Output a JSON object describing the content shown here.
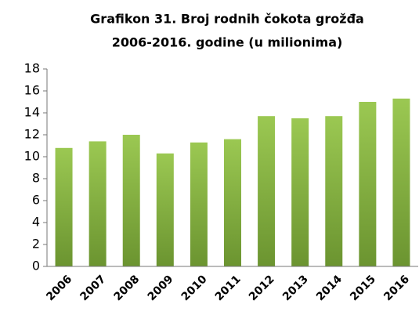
{
  "chart_data": {
    "type": "bar",
    "title": [
      "Grafikon 31. Broj rodnih čokota grožđa",
      "2006-2016. godine (u milionima)"
    ],
    "categories": [
      "2006",
      "2007",
      "2008",
      "2009",
      "2010",
      "2011",
      "2012",
      "2013",
      "2014",
      "2015",
      "2016"
    ],
    "values": [
      10.8,
      11.4,
      12.0,
      10.3,
      11.3,
      11.6,
      13.7,
      13.5,
      13.7,
      15.0,
      15.3
    ],
    "color": "#9bc852",
    "ylim": [
      0,
      18
    ],
    "yticks": [
      0,
      2,
      4,
      6,
      8,
      10,
      12,
      14,
      16,
      18
    ],
    "grid": false
  }
}
